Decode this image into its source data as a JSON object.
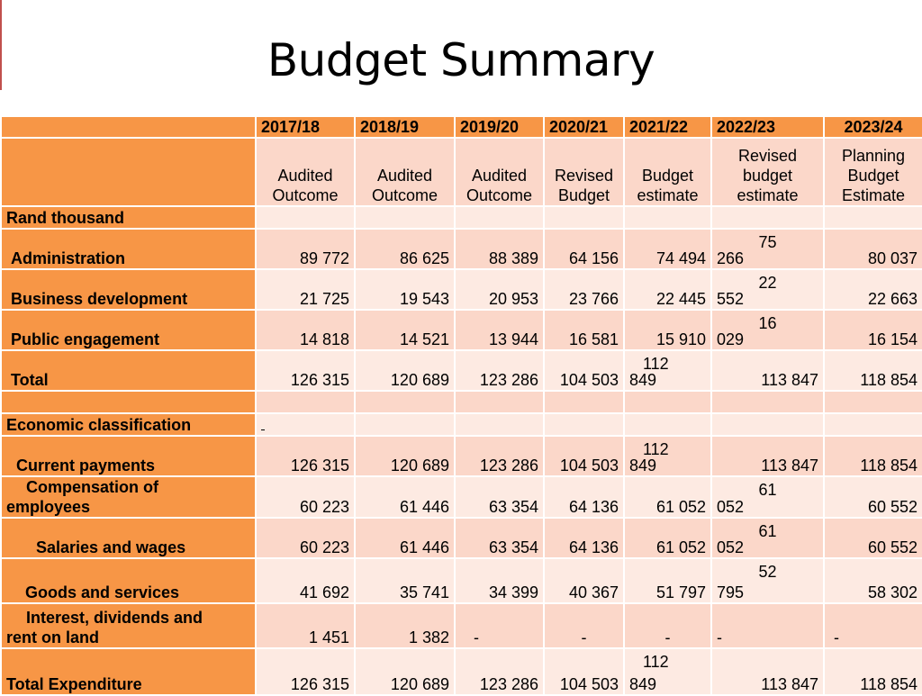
{
  "title": "Budget Summary",
  "years": [
    "2017/18",
    "2018/19",
    "2019/20",
    "2020/21",
    "2021/22",
    "2022/23",
    "2023/24"
  ],
  "subheaders": [
    [
      "Audited",
      "Outcome"
    ],
    [
      "Audited",
      "Outcome"
    ],
    [
      "Audited",
      "Outcome"
    ],
    [
      "Revised",
      "Budget"
    ],
    [
      "Budget",
      "estimate"
    ],
    [
      "Revised",
      "budget",
      "estimate"
    ],
    [
      "Planning",
      "Budget",
      "Estimate"
    ]
  ],
  "section_rand": "Rand thousand",
  "section_econ": "Economic classification",
  "rows": {
    "administration": {
      "label": "Administration",
      "values": [
        "89 772",
        "86 625",
        "88 389",
        "64 156",
        "74 494"
      ],
      "split_top": "75",
      "split_bot": "266",
      "last": "80 037"
    },
    "business": {
      "label": "Business development",
      "values": [
        "21 725",
        "19 543",
        "20 953",
        "23 766",
        "22 445"
      ],
      "split_top": "22",
      "split_bot": "552",
      "last": "22 663"
    },
    "public": {
      "label": "Public engagement",
      "values": [
        "14 818",
        "14 521",
        "13 944",
        "16 581",
        "15 910"
      ],
      "split_top": "16",
      "split_bot": "029",
      "last": "16 154"
    },
    "total": {
      "label": "Total",
      "values": [
        "126 315",
        "120 689",
        "123 286",
        "104 503"
      ],
      "split_top": "112",
      "split_bot": "849",
      "c6": "113 847",
      "last": "118 854"
    },
    "current": {
      "label": "Current payments",
      "values": [
        "126 315",
        "120 689",
        "123 286",
        "104 503"
      ],
      "split_top": "112",
      "split_bot": "849",
      "c6": "113 847",
      "last": "118 854"
    },
    "compensation": {
      "label1": "Compensation of",
      "label2": "employees",
      "values": [
        "60 223",
        "61 446",
        "63 354",
        "64 136",
        "61 052"
      ],
      "split_top": "61",
      "split_bot": "052",
      "last": "60 552"
    },
    "salaries": {
      "label": "Salaries and wages",
      "values": [
        "60 223",
        "61 446",
        "63 354",
        "64 136",
        "61 052"
      ],
      "split_top": "61",
      "split_bot": "052",
      "last": "60 552"
    },
    "goods": {
      "label": "Goods and services",
      "values": [
        "41 692",
        "35 741",
        "34 399",
        "40 367",
        "51 797"
      ],
      "split_top": "52",
      "split_bot": "795",
      "last": "58 302"
    },
    "interest": {
      "label1": "Interest, dividends and",
      "label2": "rent on land",
      "values": [
        "1 451",
        "1 382",
        "-",
        "-",
        "-",
        "-",
        "-"
      ]
    },
    "total_exp": {
      "label": "Total Expenditure",
      "values": [
        "126 315",
        "120 689",
        "123 286",
        "104 503"
      ],
      "split_top": "112",
      "split_bot": "849",
      "c6": "113 847",
      "last": "118 854"
    }
  }
}
